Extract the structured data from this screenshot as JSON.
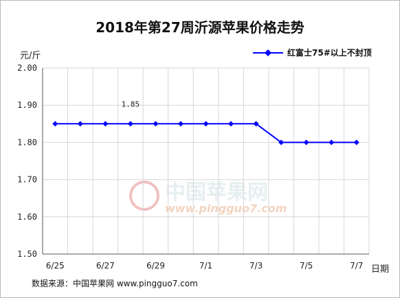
{
  "chart_data": {
    "type": "line",
    "title": "2018年第27周沂源苹果价格走势",
    "ylabel": "元/斤",
    "xlabel": "日期",
    "ylim": [
      1.5,
      2.0
    ],
    "yticks": [
      "2.00",
      "1.90",
      "1.80",
      "1.70",
      "1.60",
      "1.50"
    ],
    "grid": true,
    "legend_position": "top-right",
    "x_tick_labels": [
      "6/25",
      "6/27",
      "6/29",
      "7/1",
      "7/3",
      "7/5",
      "7/7"
    ],
    "series": [
      {
        "name": "红富士75#以上不封顶",
        "color": "#0000ff",
        "values": [
          1.85,
          1.85,
          1.85,
          1.85,
          1.85,
          1.85,
          1.85,
          1.85,
          1.85,
          1.8,
          1.8,
          1.8,
          1.8
        ]
      }
    ],
    "annotations": [
      {
        "index": 3,
        "text": "1.85"
      }
    ]
  },
  "source_note": "数据来源：中国苹果网 www.pingguo7.com",
  "watermark": {
    "name": "中国苹果网",
    "url": "www.pingguo7.com"
  }
}
